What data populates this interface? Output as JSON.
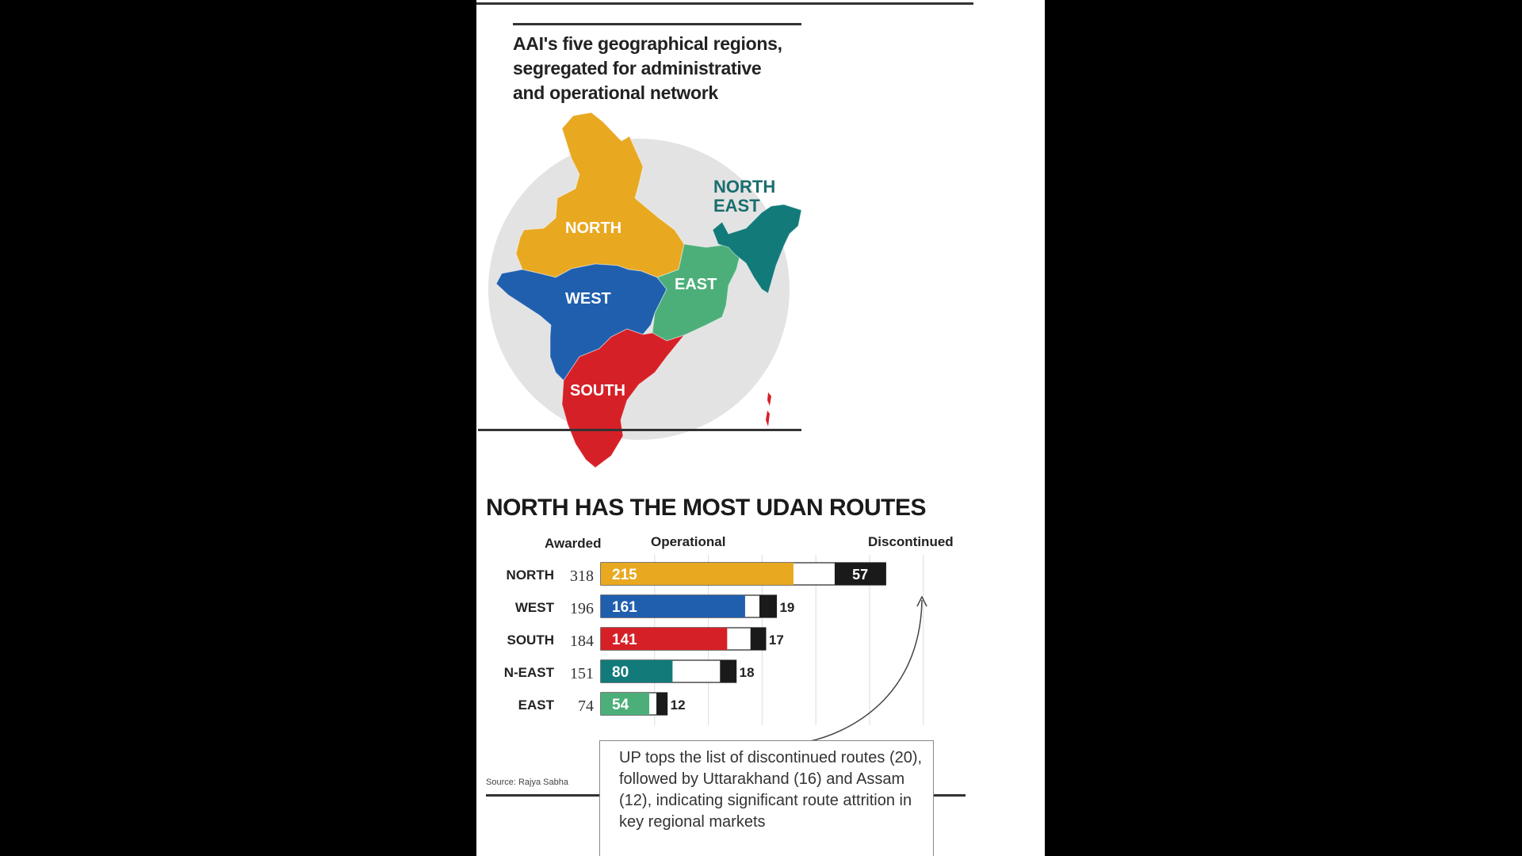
{
  "map": {
    "title_lines": [
      "AAI's five geographical regions,",
      "segregated for administrative",
      "and operational network"
    ],
    "regions": [
      {
        "name": "NORTH",
        "color": "#e8a820"
      },
      {
        "name": "WEST",
        "color": "#1f5fae"
      },
      {
        "name": "EAST",
        "color": "#4caf7a"
      },
      {
        "name": "SOUTH",
        "color": "#d62027"
      },
      {
        "name": "NORTH EAST",
        "label_lines": [
          "NORTH",
          "EAST"
        ],
        "color": "#137a7a"
      }
    ]
  },
  "chart": {
    "col_awarded": "Awarded",
    "col_operational": "Operational",
    "col_discontinued": "Discontinued",
    "source": "Source: Rajya Sabha",
    "note": "UP tops the list of discontinued routes (20), followed by Uttarakhand (16) and Assam (12), indicating significant route attrition in key regional markets"
  },
  "chart_data": {
    "type": "bar",
    "title": "NORTH HAS THE MOST UDAN ROUTES",
    "categories": [
      "NORTH",
      "WEST",
      "SOUTH",
      "N-EAST",
      "EAST"
    ],
    "series": [
      {
        "name": "Awarded",
        "values": [
          318,
          196,
          184,
          151,
          74
        ]
      },
      {
        "name": "Operational",
        "values": [
          215,
          161,
          141,
          80,
          54
        ]
      },
      {
        "name": "Discontinued",
        "values": [
          57,
          19,
          17,
          18,
          12
        ]
      }
    ],
    "colors": [
      "#e8a820",
      "#1f5fae",
      "#d62027",
      "#137a7a",
      "#4caf7a"
    ]
  }
}
